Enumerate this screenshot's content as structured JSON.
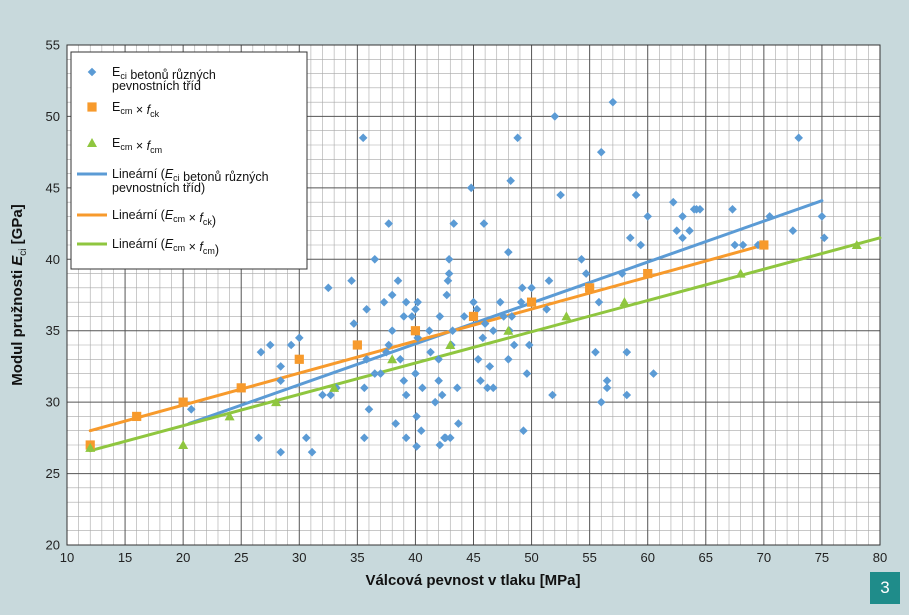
{
  "figure_number": "3",
  "colors": {
    "background": "#c8d9dc",
    "plot_background": "#ffffff",
    "minor_grid": "#9a9a9a",
    "blue": "#5b9bd5",
    "orange": "#f79a2c",
    "green": "#8fc63f",
    "badge": "#1f8c8a"
  },
  "chart_data": {
    "type": "scatter",
    "xlabel": "Válcová pevnost v tlaku [MPa]",
    "ylabel": {
      "prefix": "Modul pružnosti ",
      "symbol": "E",
      "sub": "ci",
      "suffix": " [GPa]"
    },
    "xlim": [
      10,
      80
    ],
    "ylim": [
      20,
      55
    ],
    "x_ticks": [
      10,
      15,
      20,
      25,
      30,
      35,
      40,
      45,
      50,
      55,
      60,
      65,
      70,
      75,
      80
    ],
    "y_ticks": [
      20,
      25,
      30,
      35,
      40,
      45,
      50,
      55
    ],
    "grid": "major and minor",
    "legend_position": "top-left",
    "legend": [
      {
        "key": "blue_pts",
        "marker": "diamond",
        "color": "#5b9bd5",
        "parts": [
          [
            "E",
            ""
          ],
          [
            "ci",
            "sub"
          ],
          [
            " betonů různých",
            ""
          ]
        ],
        "line2": "pevnostních tříd"
      },
      {
        "key": "orange_pts",
        "marker": "square",
        "color": "#f79a2c",
        "parts": [
          [
            "E",
            ""
          ],
          [
            "cm",
            "sub"
          ],
          [
            " × ",
            ""
          ],
          [
            "f",
            "it"
          ],
          [
            "ck",
            "sub"
          ]
        ]
      },
      {
        "key": "green_pts",
        "marker": "triangle",
        "color": "#8fc63f",
        "parts": [
          [
            "E",
            ""
          ],
          [
            "cm",
            "sub"
          ],
          [
            " × ",
            ""
          ],
          [
            "f",
            "it"
          ],
          [
            "cm",
            "sub"
          ]
        ]
      },
      {
        "key": "blue_line",
        "marker": "line",
        "color": "#5b9bd5",
        "parts": [
          [
            "Lineární (",
            ""
          ],
          [
            "E",
            "it"
          ],
          [
            "ci",
            "sub"
          ],
          [
            " betonů různých",
            ""
          ]
        ],
        "line2": "pevnostních tříd)"
      },
      {
        "key": "orange_line",
        "marker": "line",
        "color": "#f79a2c",
        "parts": [
          [
            "Lineární (",
            ""
          ],
          [
            "E",
            "it"
          ],
          [
            "cm",
            "sub"
          ],
          [
            " × ",
            ""
          ],
          [
            "f",
            "it"
          ],
          [
            "ck",
            "sub"
          ],
          [
            ")",
            ""
          ]
        ]
      },
      {
        "key": "green_line",
        "marker": "line",
        "color": "#8fc63f",
        "parts": [
          [
            "Lineární (",
            ""
          ],
          [
            "E",
            "it"
          ],
          [
            "cm",
            "sub"
          ],
          [
            " × ",
            ""
          ],
          [
            "f",
            "it"
          ],
          [
            "cm",
            "sub"
          ],
          [
            ")",
            ""
          ]
        ]
      }
    ],
    "series": [
      {
        "key": "blue_pts",
        "marker": "diamond",
        "color": "#5b9bd5",
        "points": [
          [
            20.7,
            29.5
          ],
          [
            26.5,
            27.5
          ],
          [
            26.7,
            33.5
          ],
          [
            27.5,
            34
          ],
          [
            28.4,
            26.5
          ],
          [
            28.4,
            31.5
          ],
          [
            28.4,
            32.5
          ],
          [
            29.3,
            34
          ],
          [
            30,
            34.5
          ],
          [
            30.6,
            27.5
          ],
          [
            31.1,
            26.5
          ],
          [
            32,
            30.5
          ],
          [
            32.5,
            38
          ],
          [
            32.7,
            30.5
          ],
          [
            33.2,
            31
          ],
          [
            34.5,
            38.5
          ],
          [
            34.7,
            35.5
          ],
          [
            35.5,
            48.5
          ],
          [
            35.6,
            27.5
          ],
          [
            35.6,
            31
          ],
          [
            35.8,
            33
          ],
          [
            35.8,
            36.5
          ],
          [
            36,
            29.5
          ],
          [
            36.5,
            32
          ],
          [
            36.5,
            40
          ],
          [
            37,
            32
          ],
          [
            37.3,
            37
          ],
          [
            37.5,
            33.5
          ],
          [
            37.7,
            42.5
          ],
          [
            37.7,
            34
          ],
          [
            38,
            35
          ],
          [
            38,
            37.5
          ],
          [
            38.3,
            28.5
          ],
          [
            38.5,
            38.5
          ],
          [
            38.7,
            33
          ],
          [
            39,
            36
          ],
          [
            39,
            31.5
          ],
          [
            39.2,
            30.5
          ],
          [
            39.2,
            27.5
          ],
          [
            39.2,
            37
          ],
          [
            39.7,
            36
          ],
          [
            40,
            36.5
          ],
          [
            40,
            32
          ],
          [
            40.1,
            29
          ],
          [
            40.1,
            26.9
          ],
          [
            40.2,
            34.5
          ],
          [
            40.2,
            37
          ],
          [
            40.6,
            31
          ],
          [
            40.5,
            28
          ],
          [
            41.2,
            35
          ],
          [
            41.3,
            33.5
          ],
          [
            41.7,
            30
          ],
          [
            42,
            31.5
          ],
          [
            42,
            33
          ],
          [
            42.1,
            36
          ],
          [
            42.1,
            27
          ],
          [
            42.3,
            30.5
          ],
          [
            42.5,
            27.5
          ],
          [
            42.6,
            27.5
          ],
          [
            42.7,
            37.5
          ],
          [
            42.8,
            38.5
          ],
          [
            42.9,
            39
          ],
          [
            42.9,
            40
          ],
          [
            43,
            27.5
          ],
          [
            43.1,
            34
          ],
          [
            43.2,
            35
          ],
          [
            43.3,
            42.5
          ],
          [
            43.6,
            31
          ],
          [
            43.7,
            28.5
          ],
          [
            44.2,
            36
          ],
          [
            44.8,
            45
          ],
          [
            45,
            37
          ],
          [
            45.3,
            36.5
          ],
          [
            45.4,
            33
          ],
          [
            45.6,
            31.5
          ],
          [
            45.8,
            34.5
          ],
          [
            45.9,
            42.5
          ],
          [
            46,
            35.5
          ],
          [
            46.2,
            31
          ],
          [
            46.4,
            32.5
          ],
          [
            46.7,
            31
          ],
          [
            46.7,
            35
          ],
          [
            47.3,
            37
          ],
          [
            47.6,
            36
          ],
          [
            48,
            40.5
          ],
          [
            48,
            33
          ],
          [
            48.1,
            35
          ],
          [
            48.2,
            45.5
          ],
          [
            48.3,
            36
          ],
          [
            48.5,
            34
          ],
          [
            48.8,
            48.5
          ],
          [
            49.1,
            37
          ],
          [
            49.2,
            38
          ],
          [
            49.3,
            28
          ],
          [
            49.6,
            32
          ],
          [
            49.8,
            34
          ],
          [
            50,
            38
          ],
          [
            51.3,
            36.5
          ],
          [
            51.5,
            38.5
          ],
          [
            51.8,
            30.5
          ],
          [
            52,
            50
          ],
          [
            52.5,
            44.5
          ],
          [
            54.3,
            40
          ],
          [
            54.7,
            39
          ],
          [
            55.5,
            33.5
          ],
          [
            55.8,
            37
          ],
          [
            56,
            47.5
          ],
          [
            56,
            30
          ],
          [
            56.5,
            31
          ],
          [
            56.5,
            31.5
          ],
          [
            57,
            51
          ],
          [
            57.8,
            39
          ],
          [
            58.2,
            30.5
          ],
          [
            58.5,
            41.5
          ],
          [
            58.2,
            33.5
          ],
          [
            59,
            44.5
          ],
          [
            59.4,
            41
          ],
          [
            60,
            43
          ],
          [
            60.5,
            32
          ],
          [
            62.2,
            44
          ],
          [
            62.5,
            42
          ],
          [
            63,
            43
          ],
          [
            63,
            41.5
          ],
          [
            63.6,
            42
          ],
          [
            64,
            43.5
          ],
          [
            64.2,
            43.5
          ],
          [
            64.5,
            43.5
          ],
          [
            67.3,
            43.5
          ],
          [
            67.5,
            41
          ],
          [
            68.2,
            41
          ],
          [
            69.5,
            41
          ],
          [
            70.5,
            43
          ],
          [
            72.5,
            42
          ],
          [
            73,
            48.5
          ],
          [
            75,
            43
          ],
          [
            75.2,
            41.5
          ]
        ]
      },
      {
        "key": "orange_pts",
        "marker": "square",
        "color": "#f79a2c",
        "points": [
          [
            12,
            27
          ],
          [
            16,
            29
          ],
          [
            20,
            30
          ],
          [
            25,
            31
          ],
          [
            30,
            33
          ],
          [
            35,
            34
          ],
          [
            40,
            35
          ],
          [
            45,
            36
          ],
          [
            50,
            37
          ],
          [
            55,
            38
          ],
          [
            60,
            39
          ],
          [
            70,
            41
          ]
        ]
      },
      {
        "key": "green_pts",
        "marker": "triangle",
        "color": "#8fc63f",
        "points": [
          [
            12,
            26.8
          ],
          [
            20,
            27
          ],
          [
            24,
            29
          ],
          [
            28,
            30
          ],
          [
            33,
            31
          ],
          [
            38,
            33
          ],
          [
            43,
            34
          ],
          [
            48,
            35
          ],
          [
            53,
            36
          ],
          [
            58,
            37
          ],
          [
            68,
            39
          ],
          [
            78,
            41
          ]
        ]
      }
    ],
    "trendlines": [
      {
        "key": "blue_line",
        "color": "#5b9bd5",
        "x": [
          20.5,
          75
        ],
        "y": [
          28.5,
          44.1
        ]
      },
      {
        "key": "orange_line",
        "color": "#f79a2c",
        "x": [
          12,
          70
        ],
        "y": [
          28,
          41
        ]
      },
      {
        "key": "green_line",
        "color": "#8fc63f",
        "x": [
          12,
          80
        ],
        "y": [
          26.6,
          41.5
        ]
      }
    ]
  }
}
